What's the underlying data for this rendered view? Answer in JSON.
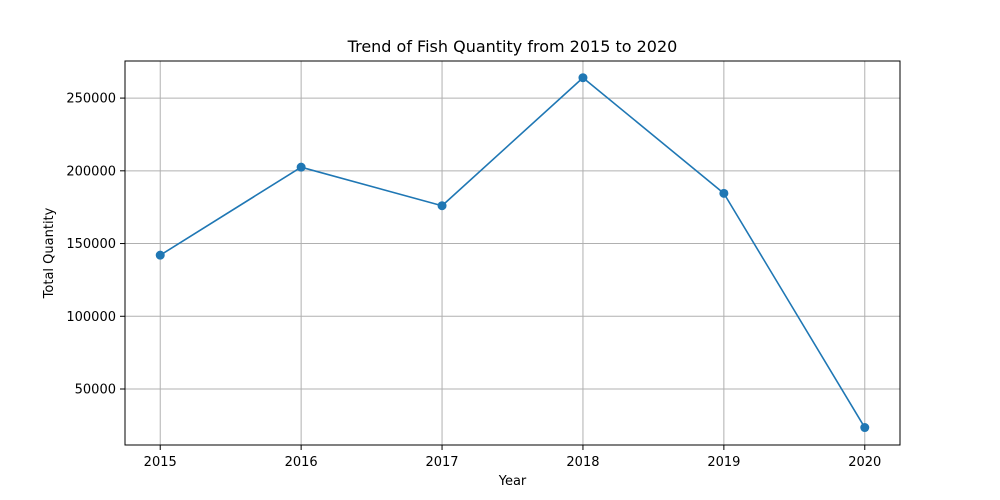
{
  "chart_data": {
    "type": "line",
    "title": "Trend of Fish Quantity from 2015 to 2020",
    "xlabel": "Year",
    "ylabel": "Total Quantity",
    "x": [
      2015,
      2016,
      2017,
      2018,
      2019,
      2020
    ],
    "x_tick_labels": [
      "2015",
      "2016",
      "2017",
      "2018",
      "2019",
      "2020"
    ],
    "xlim": [
      2014.75,
      2020.25
    ],
    "y_ticks": [
      50000,
      100000,
      150000,
      200000,
      250000
    ],
    "y_tick_labels": [
      "50000",
      "100000",
      "150000",
      "200000",
      "250000"
    ],
    "ylim": [
      11500,
      275500
    ],
    "grid": true,
    "series": [
      {
        "values": [
          142000,
          202500,
          176000,
          264000,
          184500,
          23500
        ],
        "color": "#1f77b4",
        "marker": "circle"
      }
    ]
  }
}
